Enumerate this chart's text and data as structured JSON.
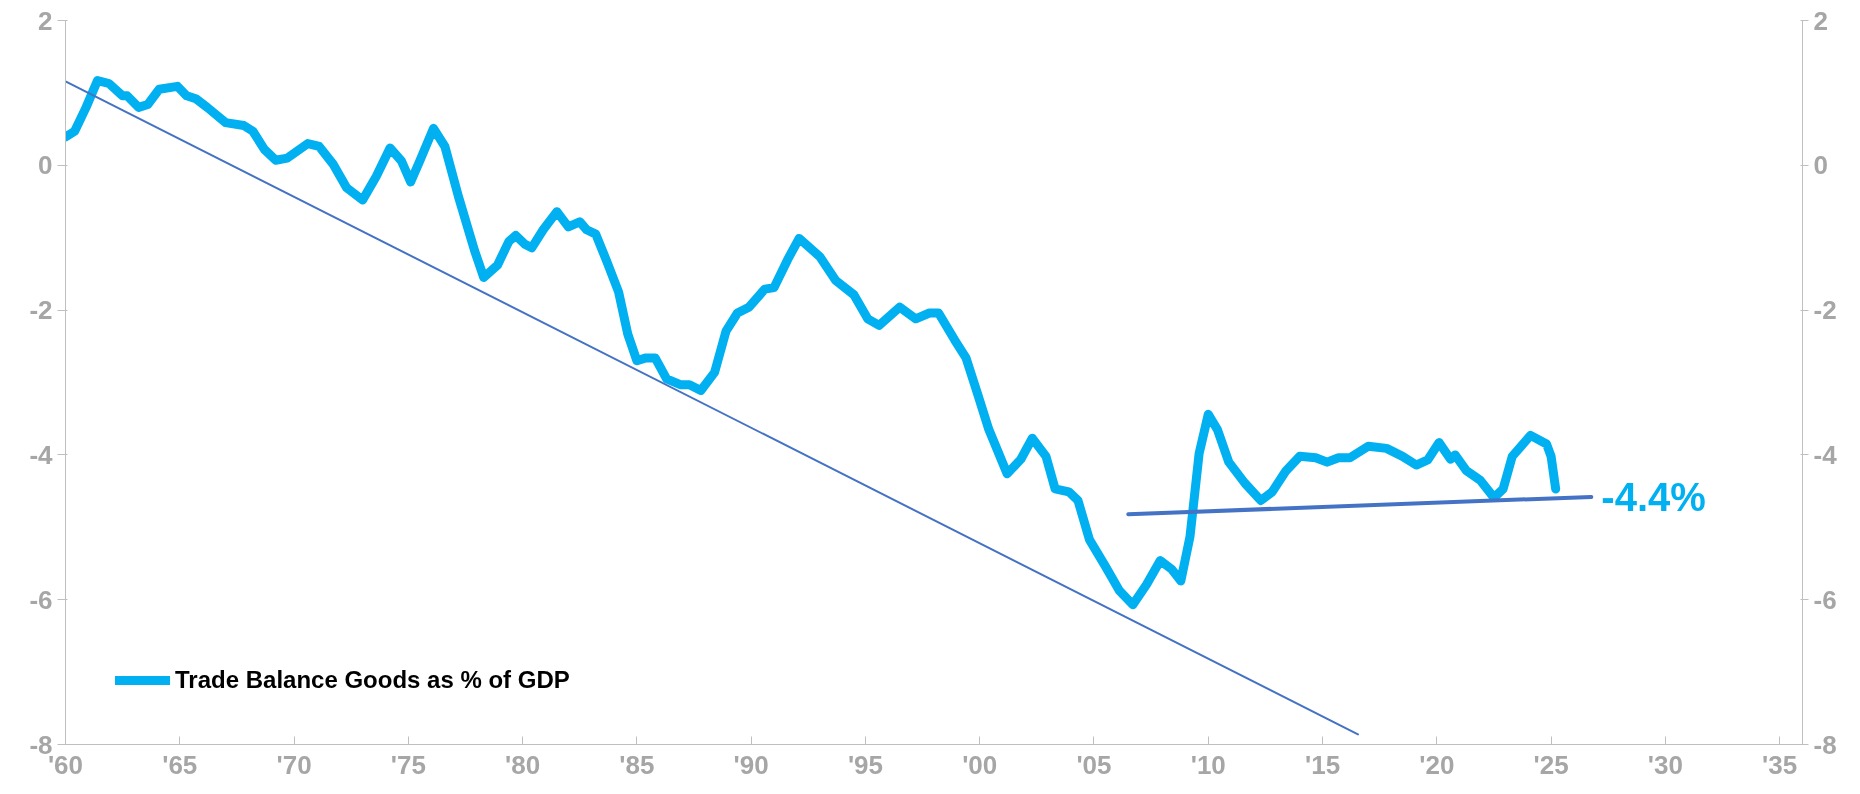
{
  "chart_data": {
    "type": "line",
    "xlim": [
      1960,
      2036
    ],
    "ylim": [
      -8,
      2
    ],
    "y2lim": [
      -8,
      2
    ],
    "xticks": [
      {
        "value": 1960,
        "label": "'60"
      },
      {
        "value": 1965,
        "label": "'65"
      },
      {
        "value": 1970,
        "label": "'70"
      },
      {
        "value": 1975,
        "label": "'75"
      },
      {
        "value": 1980,
        "label": "'80"
      },
      {
        "value": 1985,
        "label": "'85"
      },
      {
        "value": 1990,
        "label": "'90"
      },
      {
        "value": 1995,
        "label": "'95"
      },
      {
        "value": 2000,
        "label": "'00"
      },
      {
        "value": 2005,
        "label": "'05"
      },
      {
        "value": 2010,
        "label": "'10"
      },
      {
        "value": 2015,
        "label": "'15"
      },
      {
        "value": 2020,
        "label": "'20"
      },
      {
        "value": 2025,
        "label": "'25"
      },
      {
        "value": 2030,
        "label": "'30"
      },
      {
        "value": 2035,
        "label": "'35"
      }
    ],
    "yticks": [
      -8,
      -6,
      -4,
      -2,
      0,
      2
    ],
    "y2ticks": [
      -8,
      -6,
      -4,
      -2,
      0,
      2
    ],
    "grid": false,
    "legend": "bottom left",
    "annotations": [
      "-4.4%"
    ],
    "series": [
      {
        "name": "Trade Balance Goods as % of GDP",
        "color": "#00b0f0",
        "x": [
          1960.0,
          1960.4,
          1960.9,
          1961.4,
          1961.9,
          1962.5,
          1962.7,
          1963.2,
          1963.6,
          1964.1,
          1964.9,
          1965.3,
          1965.7,
          1966.2,
          1967.0,
          1967.8,
          1968.2,
          1968.7,
          1969.2,
          1969.7,
          1970.6,
          1971.1,
          1971.7,
          1972.3,
          1973.0,
          1973.6,
          1974.2,
          1974.7,
          1975.1,
          1975.5,
          1976.1,
          1976.6,
          1977.2,
          1977.9,
          1978.3,
          1978.9,
          1979.4,
          1979.7,
          1980.1,
          1980.4,
          1980.9,
          1981.5,
          1982.0,
          1982.5,
          1982.8,
          1983.2,
          1983.7,
          1984.2,
          1984.6,
          1985.0,
          1985.4,
          1985.8,
          1986.3,
          1986.9,
          1987.3,
          1987.8,
          1988.4,
          1988.9,
          1989.4,
          1989.9,
          1990.6,
          1991.0,
          1991.6,
          1992.1,
          1993.0,
          1993.7,
          1994.5,
          1995.1,
          1995.6,
          1996.5,
          1997.2,
          1997.8,
          1998.2,
          1998.9,
          1999.4,
          1999.9,
          2000.4,
          2001.2,
          2001.8,
          2002.3,
          2002.9,
          2003.3,
          2003.9,
          2004.3,
          2004.8,
          2005.5,
          2006.1,
          2006.7,
          2007.3,
          2007.9,
          2008.4,
          2008.8,
          2009.2,
          2009.6,
          2010.0,
          2010.4,
          2010.9,
          2011.6,
          2012.3,
          2012.8,
          2013.4,
          2014.0,
          2014.7,
          2015.2,
          2015.7,
          2016.2,
          2017.0,
          2017.8,
          2018.5,
          2019.1,
          2019.6,
          2020.1,
          2020.6,
          2020.8,
          2021.3,
          2021.9,
          2022.5,
          2022.9,
          2023.3,
          2024.1,
          2024.8,
          2025.0,
          2025.2
        ],
        "values": [
          0.39,
          0.47,
          0.8,
          1.17,
          1.13,
          0.96,
          0.96,
          0.8,
          0.84,
          1.05,
          1.09,
          0.96,
          0.92,
          0.8,
          0.59,
          0.55,
          0.47,
          0.22,
          0.07,
          0.1,
          0.3,
          0.26,
          0.02,
          -0.31,
          -0.48,
          -0.15,
          0.24,
          0.06,
          -0.23,
          0.06,
          0.51,
          0.26,
          -0.44,
          -1.18,
          -1.55,
          -1.38,
          -1.05,
          -0.97,
          -1.09,
          -1.14,
          -0.89,
          -0.64,
          -0.85,
          -0.78,
          -0.89,
          -0.95,
          -1.34,
          -1.75,
          -2.33,
          -2.7,
          -2.66,
          -2.66,
          -2.95,
          -3.03,
          -3.03,
          -3.11,
          -2.86,
          -2.29,
          -2.04,
          -1.96,
          -1.71,
          -1.69,
          -1.3,
          -1.01,
          -1.26,
          -1.59,
          -1.79,
          -2.12,
          -2.21,
          -1.96,
          -2.12,
          -2.04,
          -2.04,
          -2.41,
          -2.66,
          -3.15,
          -3.65,
          -4.26,
          -4.06,
          -3.77,
          -4.02,
          -4.47,
          -4.51,
          -4.63,
          -5.17,
          -5.54,
          -5.87,
          -6.07,
          -5.79,
          -5.46,
          -5.58,
          -5.74,
          -5.13,
          -3.98,
          -3.44,
          -3.65,
          -4.1,
          -4.39,
          -4.63,
          -4.51,
          -4.22,
          -4.02,
          -4.04,
          -4.1,
          -4.04,
          -4.04,
          -3.88,
          -3.91,
          -4.02,
          -4.14,
          -4.07,
          -3.83,
          -4.06,
          -4.0,
          -4.22,
          -4.35,
          -4.59,
          -4.47,
          -4.02,
          -3.73,
          -3.85,
          -4.02,
          -4.47
        ]
      },
      {
        "color": "#4472c4",
        "x": [
          1960,
          2016.55
        ],
        "values": [
          1.16,
          -7.86
        ]
      },
      {
        "color": "#4472c4",
        "x": [
          2006.5,
          2026.76
        ],
        "values": [
          -4.82,
          -4.58
        ]
      }
    ]
  }
}
